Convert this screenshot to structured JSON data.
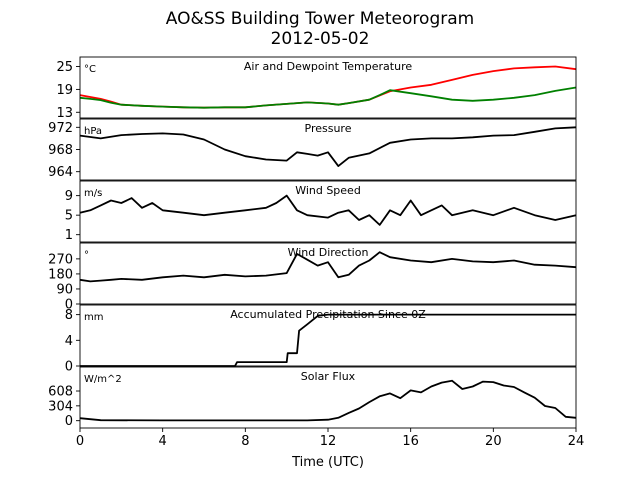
{
  "header": {
    "title": "AO&SS Building Tower Meteorogram",
    "subtitle": "2012-05-02"
  },
  "colors": {
    "temperature": "#ff0000",
    "dewpoint": "#008000",
    "line": "#000000"
  },
  "chart_data": {
    "type": "line",
    "xlabel": "Time (UTC)",
    "x_range": [
      0,
      24
    ],
    "x_ticks": [
      0,
      4,
      8,
      12,
      16,
      20,
      24
    ],
    "panels": [
      {
        "id": "temp",
        "title": "Air and Dewpoint Temperature",
        "unit": "°C",
        "ylim": [
          11.5,
          27.5
        ],
        "yticks": [
          13,
          19,
          25
        ],
        "series": [
          {
            "key": "temperature",
            "points": [
              [
                0,
                17.5
              ],
              [
                0.5,
                17
              ],
              [
                1,
                16.5
              ],
              [
                1.5,
                15.8
              ],
              [
                2,
                15
              ],
              [
                3,
                14.7
              ],
              [
                4,
                14.5
              ],
              [
                5,
                14.3
              ],
              [
                6,
                14.2
              ],
              [
                7,
                14.3
              ],
              [
                8,
                14.3
              ],
              [
                9,
                14.8
              ],
              [
                10,
                15.2
              ],
              [
                11,
                15.6
              ],
              [
                12,
                15.3
              ],
              [
                12.5,
                15
              ],
              [
                13,
                15.4
              ],
              [
                14,
                16.3
              ],
              [
                15,
                18.5
              ],
              [
                16,
                19.5
              ],
              [
                17,
                20.2
              ],
              [
                18,
                21.5
              ],
              [
                19,
                22.8
              ],
              [
                20,
                23.8
              ],
              [
                21,
                24.5
              ],
              [
                22,
                24.8
              ],
              [
                23,
                25
              ],
              [
                24,
                24.3
              ]
            ]
          },
          {
            "key": "dewpoint",
            "points": [
              [
                0,
                16.8
              ],
              [
                0.5,
                16.5
              ],
              [
                1,
                16.2
              ],
              [
                1.5,
                15.5
              ],
              [
                2,
                15
              ],
              [
                3,
                14.7
              ],
              [
                4,
                14.5
              ],
              [
                5,
                14.3
              ],
              [
                6,
                14.2
              ],
              [
                7,
                14.3
              ],
              [
                8,
                14.3
              ],
              [
                9,
                14.8
              ],
              [
                10,
                15.2
              ],
              [
                11,
                15.6
              ],
              [
                12,
                15.3
              ],
              [
                12.5,
                15
              ],
              [
                13,
                15.4
              ],
              [
                14,
                16.3
              ],
              [
                14.5,
                17.5
              ],
              [
                15,
                18.8
              ],
              [
                16,
                18
              ],
              [
                17,
                17.2
              ],
              [
                18,
                16.3
              ],
              [
                19,
                16
              ],
              [
                20,
                16.3
              ],
              [
                21,
                16.8
              ],
              [
                22,
                17.5
              ],
              [
                23,
                18.6
              ],
              [
                24,
                19.5
              ]
            ]
          }
        ]
      },
      {
        "id": "pressure",
        "title": "Pressure",
        "unit": "hPa",
        "ylim": [
          962.5,
          973.5
        ],
        "yticks": [
          964,
          968,
          972
        ],
        "series": [
          {
            "key": "line",
            "points": [
              [
                0,
                970.5
              ],
              [
                1,
                970
              ],
              [
                2,
                970.6
              ],
              [
                3,
                970.8
              ],
              [
                4,
                970.9
              ],
              [
                5,
                970.7
              ],
              [
                6,
                969.8
              ],
              [
                7,
                968
              ],
              [
                8,
                966.8
              ],
              [
                9,
                966.2
              ],
              [
                10,
                966
              ],
              [
                10.5,
                967.5
              ],
              [
                11,
                967.2
              ],
              [
                11.5,
                966.9
              ],
              [
                12,
                967.5
              ],
              [
                12.3,
                966
              ],
              [
                12.5,
                965
              ],
              [
                13,
                966.5
              ],
              [
                14,
                967.3
              ],
              [
                15,
                969.2
              ],
              [
                16,
                969.8
              ],
              [
                17,
                970
              ],
              [
                18,
                970
              ],
              [
                19,
                970.2
              ],
              [
                20,
                970.5
              ],
              [
                21,
                970.6
              ],
              [
                22,
                971.2
              ],
              [
                23,
                971.8
              ],
              [
                24,
                972
              ]
            ]
          }
        ]
      },
      {
        "id": "wind_speed",
        "title": "Wind Speed",
        "unit": "m/s",
        "ylim": [
          -0.5,
          12
        ],
        "yticks": [
          1,
          5,
          9
        ],
        "series": [
          {
            "key": "line",
            "points": [
              [
                0,
                5.5
              ],
              [
                0.5,
                6
              ],
              [
                1,
                7
              ],
              [
                1.5,
                8
              ],
              [
                2,
                7.5
              ],
              [
                2.5,
                8.5
              ],
              [
                3,
                6.5
              ],
              [
                3.5,
                7.5
              ],
              [
                4,
                6
              ],
              [
                5,
                5.5
              ],
              [
                6,
                5
              ],
              [
                7,
                5.5
              ],
              [
                8,
                6
              ],
              [
                9,
                6.5
              ],
              [
                9.5,
                7.5
              ],
              [
                10,
                9
              ],
              [
                10.5,
                6
              ],
              [
                11,
                5
              ],
              [
                12,
                4.5
              ],
              [
                12.5,
                5.5
              ],
              [
                13,
                6
              ],
              [
                13.5,
                4
              ],
              [
                14,
                5
              ],
              [
                14.5,
                3
              ],
              [
                15,
                6
              ],
              [
                15.5,
                5
              ],
              [
                16,
                8
              ],
              [
                16.5,
                5
              ],
              [
                17,
                6
              ],
              [
                17.5,
                7
              ],
              [
                18,
                5
              ],
              [
                19,
                6
              ],
              [
                20,
                5
              ],
              [
                21,
                6.5
              ],
              [
                22,
                5
              ],
              [
                23,
                4
              ],
              [
                24,
                5
              ]
            ]
          }
        ]
      },
      {
        "id": "wind_dir",
        "title": "Wind Direction",
        "unit": "°",
        "ylim": [
          0,
          365
        ],
        "yticks": [
          0,
          90,
          180,
          270
        ],
        "series": [
          {
            "key": "line",
            "points": [
              [
                0,
                145
              ],
              [
                0.5,
                135
              ],
              [
                1,
                140
              ],
              [
                1.5,
                145
              ],
              [
                2,
                150
              ],
              [
                3,
                145
              ],
              [
                4,
                160
              ],
              [
                5,
                170
              ],
              [
                6,
                160
              ],
              [
                7,
                175
              ],
              [
                8,
                165
              ],
              [
                9,
                170
              ],
              [
                10,
                185
              ],
              [
                10.5,
                300
              ],
              [
                11,
                265
              ],
              [
                11.5,
                230
              ],
              [
                12,
                250
              ],
              [
                12.5,
                160
              ],
              [
                13,
                175
              ],
              [
                13.5,
                230
              ],
              [
                14,
                260
              ],
              [
                14.5,
                310
              ],
              [
                15,
                280
              ],
              [
                16,
                260
              ],
              [
                17,
                250
              ],
              [
                18,
                270
              ],
              [
                19,
                255
              ],
              [
                20,
                250
              ],
              [
                21,
                260
              ],
              [
                22,
                235
              ],
              [
                23,
                230
              ],
              [
                24,
                220
              ]
            ]
          }
        ]
      },
      {
        "id": "precip",
        "title": "Accumulated Precipitation Since 0Z",
        "unit": "mm",
        "ylim": [
          0,
          9.5
        ],
        "yticks": [
          0,
          4,
          8
        ],
        "series": [
          {
            "key": "line",
            "points": [
              [
                0,
                0
              ],
              [
                7.5,
                0
              ],
              [
                7.6,
                0.6
              ],
              [
                10,
                0.6
              ],
              [
                10.05,
                2
              ],
              [
                10.5,
                2
              ],
              [
                10.6,
                5.5
              ],
              [
                11,
                6.5
              ],
              [
                11.5,
                7.8
              ],
              [
                12,
                8
              ],
              [
                24,
                8
              ]
            ]
          }
        ]
      },
      {
        "id": "solar",
        "title": "Solar Flux",
        "unit": "W/m^2",
        "ylim": [
          -150,
          1100
        ],
        "yticks": [
          0,
          304,
          608
        ],
        "series": [
          {
            "key": "line",
            "points": [
              [
                0,
                50
              ],
              [
                1,
                10
              ],
              [
                4,
                5
              ],
              [
                8,
                5
              ],
              [
                11,
                5
              ],
              [
                12,
                20
              ],
              [
                12.5,
                60
              ],
              [
                13,
                160
              ],
              [
                13.5,
                250
              ],
              [
                14,
                380
              ],
              [
                14.5,
                500
              ],
              [
                15,
                560
              ],
              [
                15.5,
                460
              ],
              [
                16,
                620
              ],
              [
                16.5,
                580
              ],
              [
                17,
                700
              ],
              [
                17.5,
                780
              ],
              [
                18,
                820
              ],
              [
                18.5,
                650
              ],
              [
                19,
                700
              ],
              [
                19.5,
                800
              ],
              [
                20,
                790
              ],
              [
                20.5,
                720
              ],
              [
                21,
                690
              ],
              [
                21.5,
                580
              ],
              [
                22,
                470
              ],
              [
                22.5,
                300
              ],
              [
                23,
                260
              ],
              [
                23.5,
                80
              ],
              [
                24,
                60
              ]
            ]
          }
        ]
      }
    ]
  }
}
